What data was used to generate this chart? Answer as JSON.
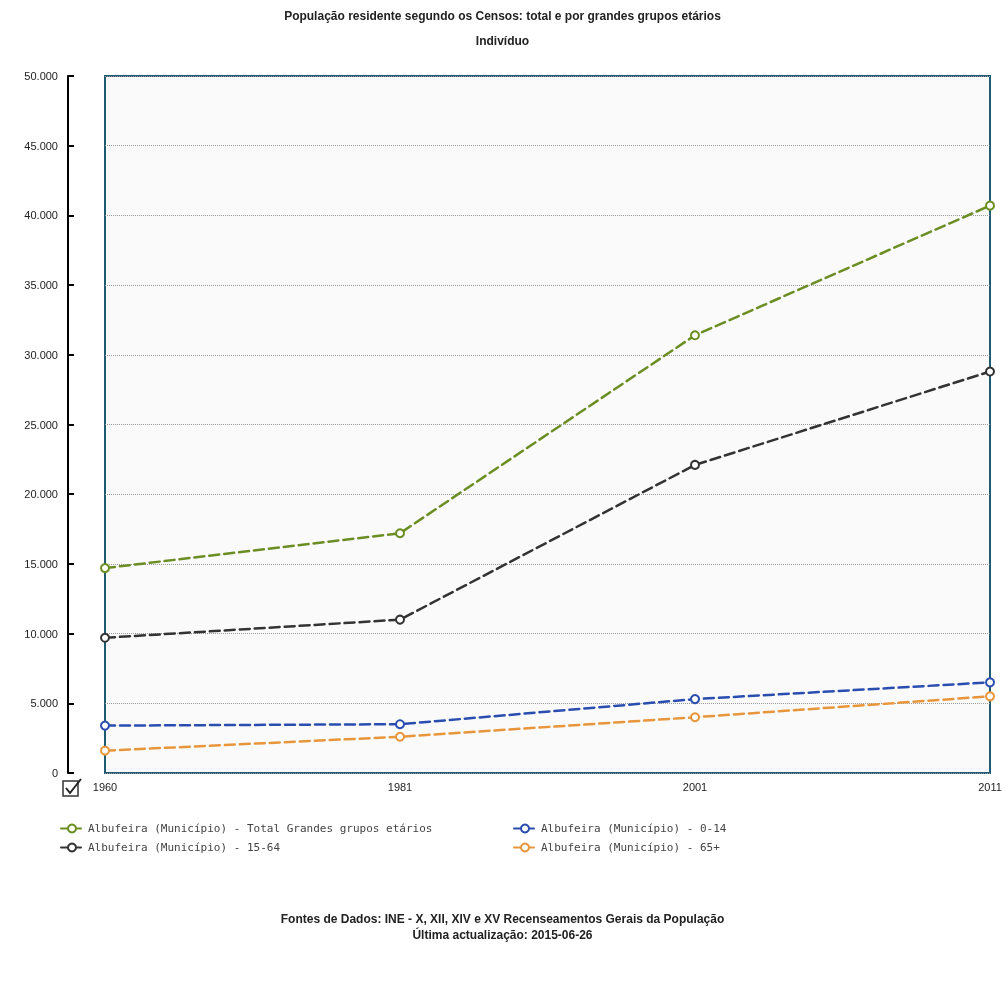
{
  "chart_data": {
    "type": "line",
    "title": "População residente segundo os Censos: total e por grandes grupos etários",
    "subtitle": "Indivíduo",
    "categories": [
      "1960",
      "1981",
      "2001",
      "2011"
    ],
    "series": [
      {
        "name": "Albufeira (Município) - Total Grandes grupos etários",
        "color": "#6b8e23",
        "values": [
          14700,
          17200,
          31400,
          40700
        ]
      },
      {
        "name": "Albufeira (Município) - 0-14",
        "color": "#2a4db0",
        "values": [
          3400,
          3500,
          5300,
          6500
        ]
      },
      {
        "name": "Albufeira (Município) - 15-64",
        "color": "#333333",
        "values": [
          9700,
          11000,
          22100,
          28800
        ]
      },
      {
        "name": "Albufeira (Município) - 65+",
        "color": "#e8963c",
        "values": [
          1600,
          2600,
          4000,
          5500
        ]
      }
    ],
    "ylim": [
      0,
      50000
    ],
    "yticks": [
      0,
      {
        "value": 5000,
        "label": "5.000"
      },
      {
        "value": 10000,
        "label": "10.000"
      },
      {
        "value": 15000,
        "label": "15.000"
      },
      {
        "value": 20000,
        "label": "20.000"
      },
      {
        "value": 25000,
        "label": "25.000"
      },
      {
        "value": 30000,
        "label": "30.000"
      },
      {
        "value": 35000,
        "label": "35.000"
      },
      {
        "value": 40000,
        "label": "40.000"
      },
      {
        "value": 45000,
        "label": "45.000"
      },
      {
        "value": 50000,
        "label": "50.000"
      }
    ],
    "grid": "y",
    "legend": "bottom",
    "marker": "circle",
    "line_style": "dashed",
    "annotations": [
      "Fontes de Dados: INE - X, XII, XIV e XV Recenseamentos Gerais da População",
      "Última actualização: 2015-06-26"
    ]
  }
}
